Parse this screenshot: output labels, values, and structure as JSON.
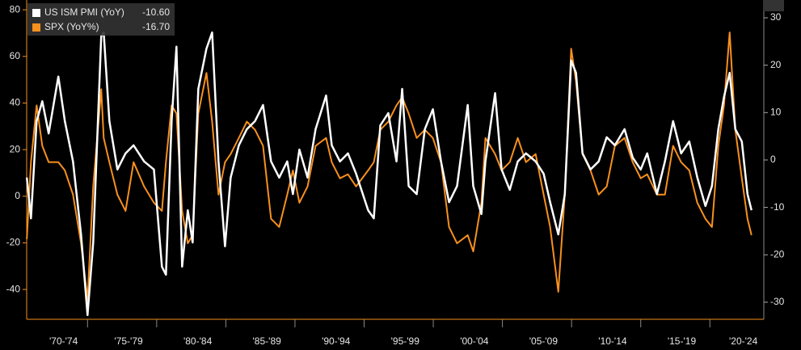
{
  "chart_data": {
    "type": "line",
    "x": [
      1970.61,
      1970.91,
      1971.32,
      1971.73,
      1972.19,
      1972.89,
      1973.36,
      1973.95,
      1974.53,
      1975.0,
      1975.41,
      1975.99,
      1976.17,
      1976.58,
      1977.16,
      1977.75,
      1978.33,
      1979.09,
      1979.8,
      1980.38,
      1980.67,
      1981.08,
      1981.43,
      1981.84,
      1982.25,
      1982.6,
      1983.01,
      1983.6,
      1984.01,
      1984.47,
      1984.94,
      1985.35,
      1985.94,
      1986.52,
      1987.11,
      1987.69,
      1988.27,
      1988.86,
      1989.44,
      1989.85,
      1990.32,
      1990.91,
      1991.49,
      1992.25,
      1992.66,
      1993.25,
      1993.83,
      1994.42,
      1995.29,
      1995.7,
      1996.17,
      1996.75,
      1997.34,
      1997.75,
      1998.22,
      1998.8,
      1999.39,
      1999.97,
      2000.56,
      2001.14,
      2001.72,
      2002.49,
      2002.89,
      2003.48,
      2003.77,
      2004.47,
      2004.94,
      2005.53,
      2006.11,
      2006.7,
      2007.4,
      2007.98,
      2008.45,
      2009.04,
      2009.51,
      2009.97,
      2010.32,
      2010.79,
      2011.37,
      2011.96,
      2012.54,
      2013.13,
      2013.83,
      2014.42,
      2015.0,
      2015.47,
      2016.17,
      2016.75,
      2017.34,
      2017.92,
      2018.51,
      2019.09,
      2019.68,
      2020.15,
      2020.61,
      2021.02,
      2021.43,
      2021.84,
      2022.31,
      2022.72,
      2023.01
    ],
    "series": [
      {
        "name": "US ISM PMI (YoY)",
        "last_label": "-10.60",
        "color": "#ffffff",
        "axis": "y2",
        "values": [
          -3.7,
          -12.3,
          8.2,
          12.4,
          5.6,
          17.6,
          8.2,
          -0.3,
          -15.7,
          -32.7,
          -17.4,
          26.1,
          26.9,
          8.2,
          -2.0,
          1.4,
          3.1,
          -0.3,
          -2.0,
          -22.5,
          -24.2,
          8.2,
          23.9,
          -22.5,
          -10.6,
          -17.4,
          15.0,
          23.5,
          26.9,
          -0.3,
          -18.2,
          -3.7,
          3.1,
          6.5,
          8.2,
          11.6,
          -0.3,
          -3.7,
          -0.3,
          -7.2,
          2.2,
          -3.7,
          6.5,
          13.6,
          3.1,
          -0.3,
          1.4,
          -2.9,
          -10.6,
          -12.3,
          7.3,
          9.9,
          -0.3,
          15.0,
          -5.5,
          -7.2,
          6.5,
          10.7,
          -0.3,
          -8.9,
          -5.5,
          11.6,
          -5.5,
          -11.4,
          -0.3,
          14.1,
          -2.0,
          -6.3,
          -0.3,
          1.4,
          -0.3,
          -2.9,
          -8.9,
          -15.7,
          -7.2,
          21.0,
          18.4,
          1.4,
          -2.0,
          -0.3,
          4.8,
          3.1,
          6.5,
          0.5,
          -2.0,
          1.4,
          -7.2,
          -0.3,
          8.2,
          1.4,
          3.9,
          -3.7,
          -9.7,
          -5.5,
          6.5,
          13.3,
          18.4,
          6.5,
          3.9,
          -7.2,
          -10.6
        ]
      },
      {
        "name": "SPX (YoY%)",
        "last_label": "-16.70",
        "color": "#f7901e",
        "values": [
          -18.4,
          14.6,
          39.0,
          21.6,
          14.6,
          14.6,
          11.1,
          0.7,
          -20.2,
          -44.5,
          4.2,
          45.9,
          25.0,
          14.6,
          0.7,
          -6.3,
          14.6,
          4.2,
          -2.8,
          -6.3,
          14.6,
          39.0,
          35.5,
          -6.3,
          -20.2,
          -16.7,
          35.5,
          52.9,
          32.0,
          0.7,
          14.6,
          18.1,
          25.0,
          32.0,
          28.5,
          21.6,
          -9.7,
          -13.2,
          0.7,
          11.1,
          -2.8,
          4.2,
          21.6,
          25.0,
          14.6,
          7.7,
          9.4,
          4.2,
          11.1,
          14.6,
          28.5,
          32.0,
          39.0,
          42.4,
          35.5,
          25.0,
          28.5,
          25.0,
          14.6,
          -13.2,
          -20.2,
          -16.7,
          -23.7,
          -2.8,
          25.0,
          18.1,
          11.1,
          14.6,
          25.0,
          14.6,
          18.1,
          0.7,
          -13.2,
          -41.0,
          0.7,
          63.3,
          49.4,
          18.1,
          11.1,
          0.7,
          4.2,
          21.6,
          25.0,
          14.6,
          7.7,
          9.4,
          0.7,
          0.7,
          21.6,
          14.6,
          11.1,
          -2.8,
          -9.7,
          -13.2,
          21.6,
          39.0,
          70.3,
          28.5,
          7.7,
          -9.7,
          -16.7
        ]
      }
    ],
    "xlim": [
      1970.6,
      2023.9
    ],
    "xticks": [
      {
        "value": 1970,
        "label": "'70-'74"
      },
      {
        "value": 1975,
        "label": "'75-'79"
      },
      {
        "value": 1980,
        "label": "'80-'84"
      },
      {
        "value": 1985,
        "label": "'85-'89"
      },
      {
        "value": 1990,
        "label": "'90-'94"
      },
      {
        "value": 1995,
        "label": "'95-'99"
      },
      {
        "value": 2000,
        "label": "'00-'04"
      },
      {
        "value": 2005,
        "label": "'05-'09"
      },
      {
        "value": 2010,
        "label": "'10-'14"
      },
      {
        "value": 2015,
        "label": "'15-'19"
      },
      {
        "value": 2020,
        "label": "'20-'24"
      }
    ],
    "ylim": [
      -52.8,
      84.2
    ],
    "yticks": [
      80,
      60,
      40,
      20,
      0,
      -20,
      -40
    ],
    "y2lim": [
      -33.6,
      33.75
    ],
    "y2ticks": [
      30,
      20,
      10,
      0,
      -10,
      -20,
      -30
    ],
    "grid": false,
    "legend": "top-left"
  }
}
